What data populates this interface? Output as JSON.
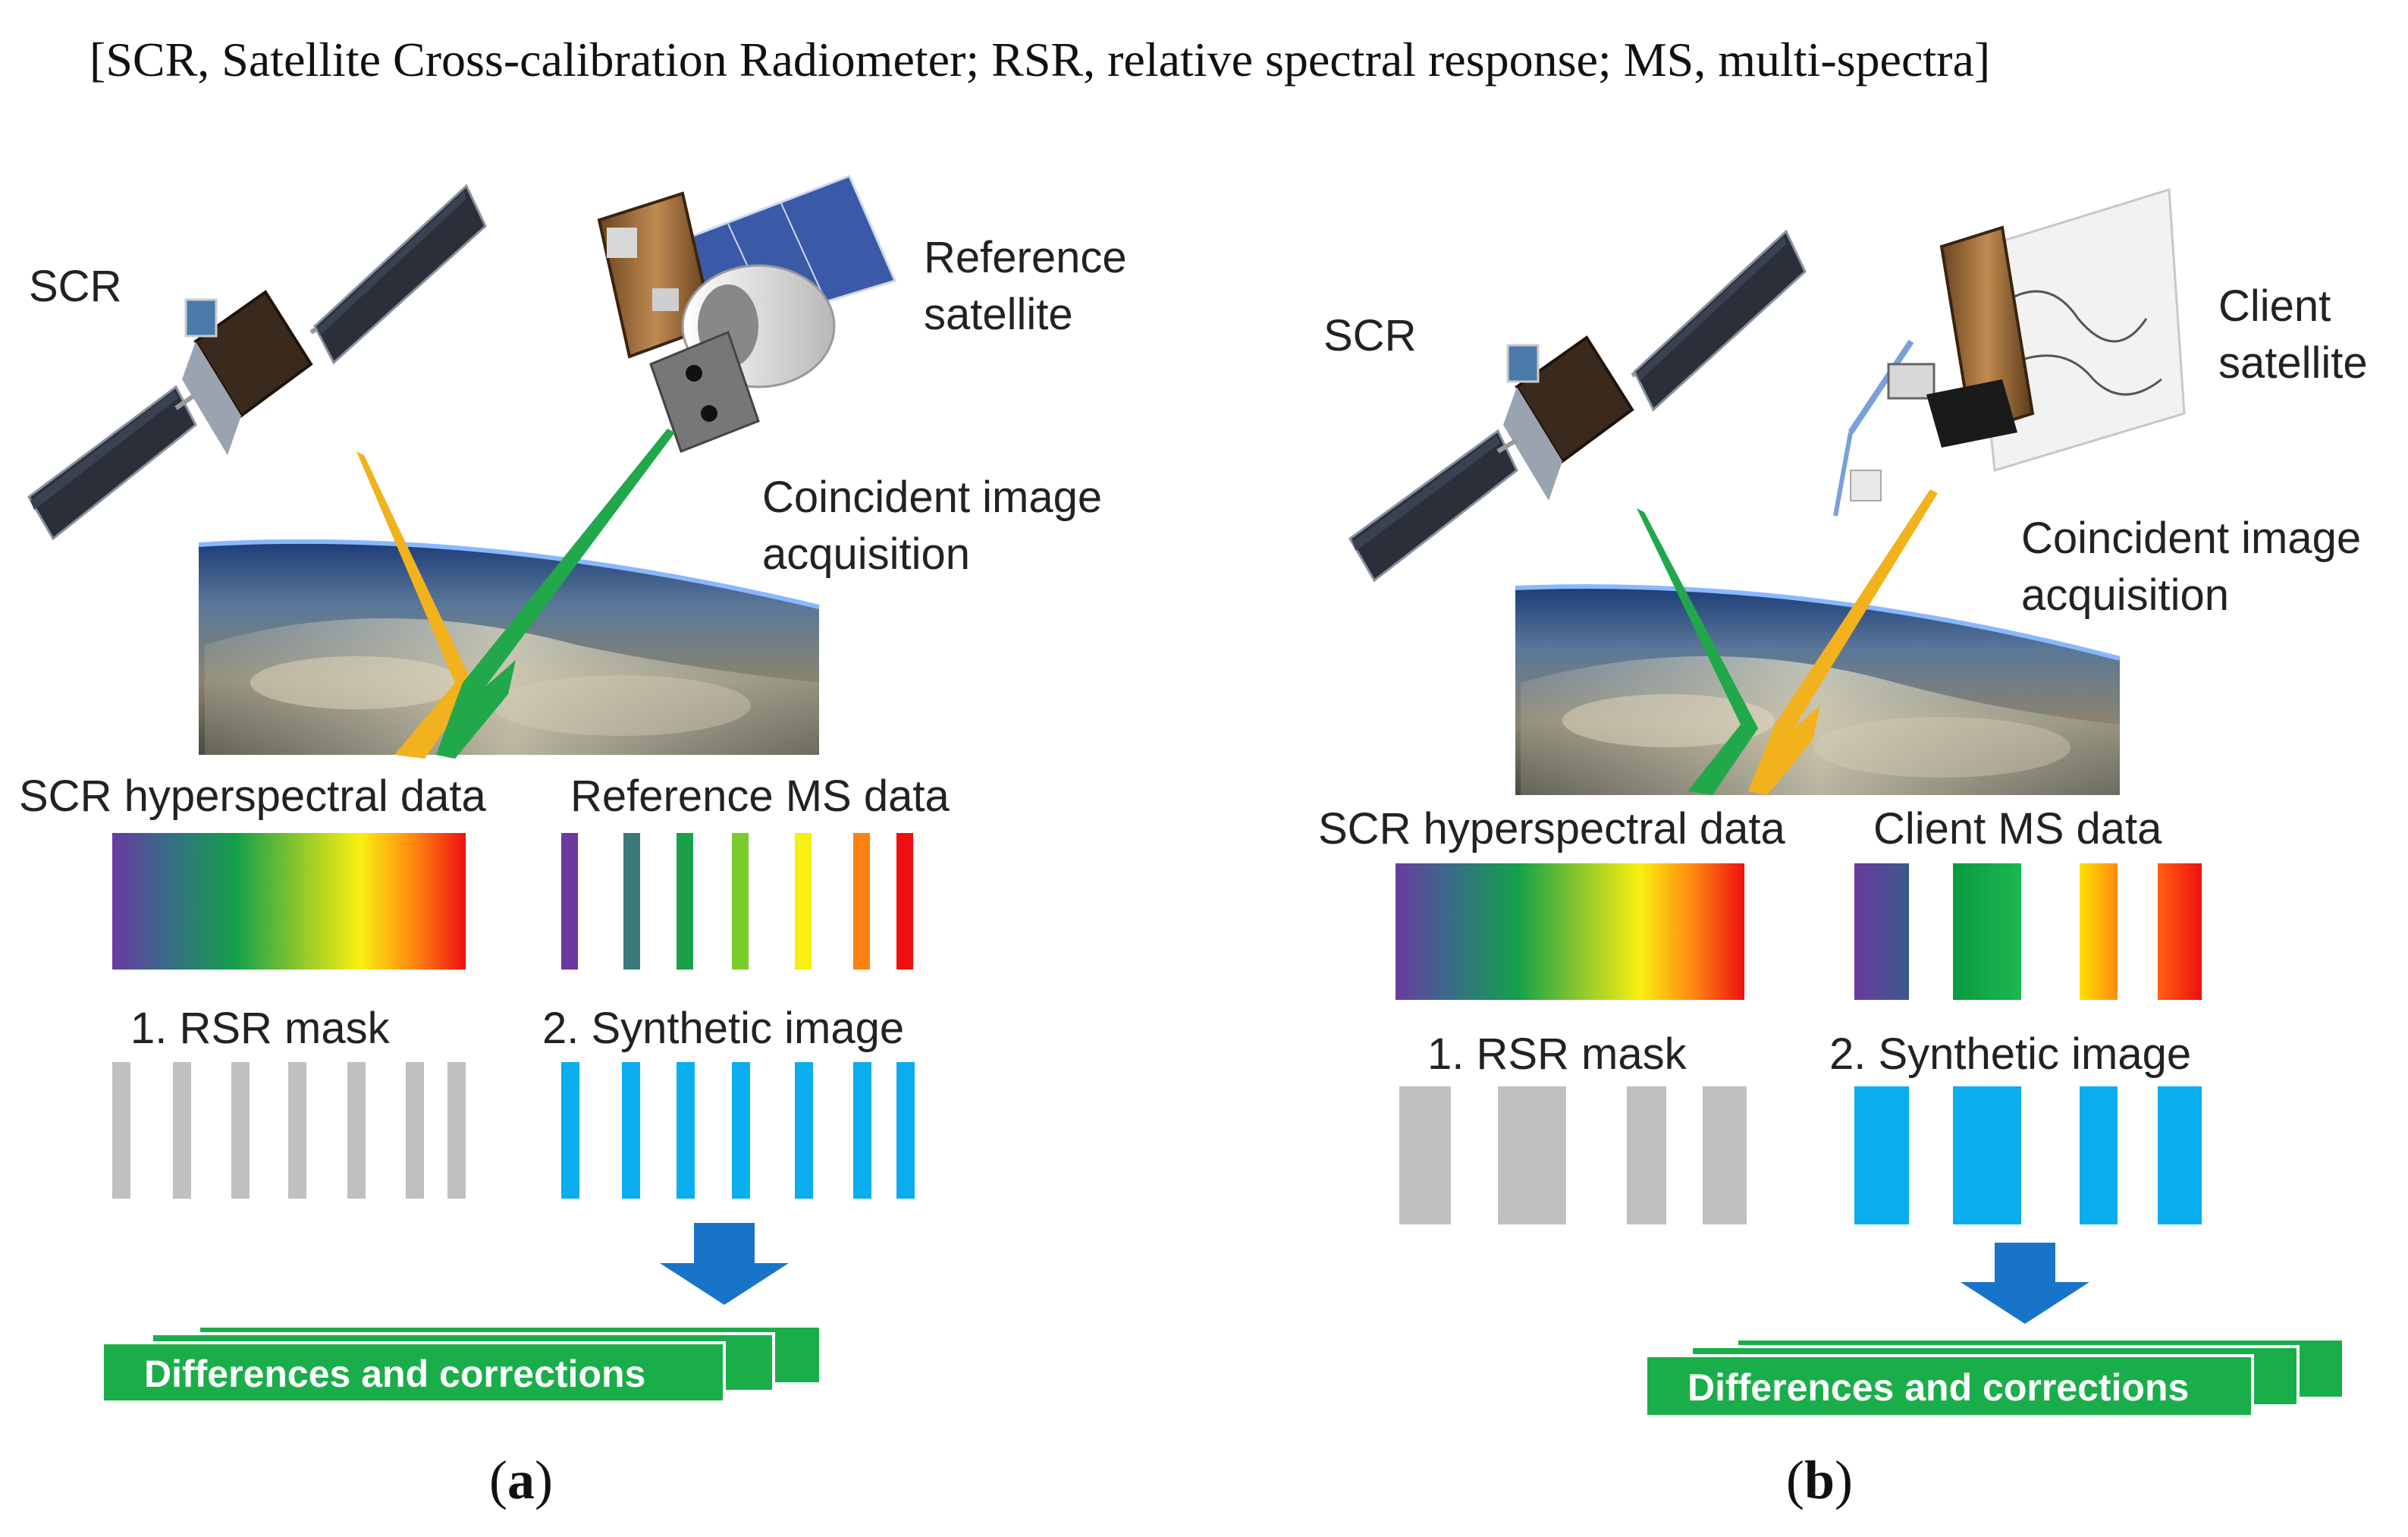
{
  "caption": "[SCR, Satellite Cross-calibration Radiometer; RSR, relative spectral response; MS, multi-spectra]",
  "panels": [
    {
      "id": "a",
      "label": "a",
      "scr_label": "SCR",
      "satellite_label": [
        "Reference",
        "satellite"
      ],
      "coincident_label": [
        "Coincident image",
        "acquisition"
      ],
      "hyperspectral_label": "SCR hyperspectral data",
      "ms_data_label": "Reference MS data",
      "rsr_mask_label": "1. RSR mask",
      "synthetic_label": "2. Synthetic image",
      "result_label": "Differences and corrections"
    },
    {
      "id": "b",
      "label": "b",
      "scr_label": "SCR",
      "satellite_label": [
        "Client",
        "satellite"
      ],
      "coincident_label": [
        "Coincident image",
        "acquisition"
      ],
      "hyperspectral_label": "SCR hyperspectral data",
      "ms_data_label": "Client MS data",
      "rsr_mask_label": "1. RSR mask",
      "synthetic_label": "2. Synthetic image",
      "result_label": "Differences and corrections"
    }
  ],
  "colors": {
    "green_box": "#1aae4a",
    "arrow": "#1874c8",
    "band_blue": "#0aaeee",
    "mask_gray": "#c0c0c0",
    "beam_yellow": "#f2b21e",
    "beam_green": "#21a84a"
  }
}
